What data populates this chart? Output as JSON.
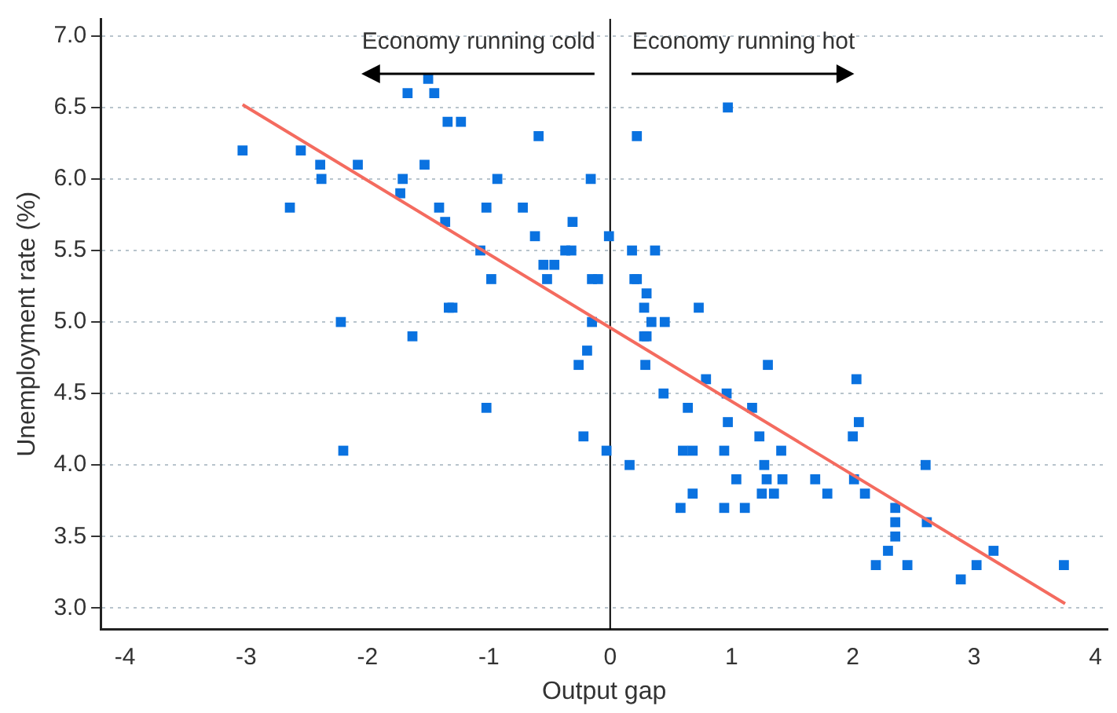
{
  "chart_data": {
    "type": "scatter",
    "xlabel": "Output gap",
    "ylabel": "Unemployment rate (%)",
    "annotations": [
      "Economy running cold",
      "Economy running hot"
    ],
    "xlim": [
      -4.2,
      4.1
    ],
    "xticks": [
      -4,
      -3,
      -2,
      -1,
      0,
      1,
      2,
      3,
      4
    ],
    "ylim": [
      2.85,
      7.12
    ],
    "yticks": [
      {
        "value": 3,
        "label": "3.0"
      },
      {
        "value": 3.5,
        "label": "3.5"
      },
      {
        "value": 4,
        "label": "4.0"
      },
      {
        "value": 4.5,
        "label": "4.5"
      },
      {
        "value": 5,
        "label": "5.0"
      },
      {
        "value": 5.5,
        "label": "5.5"
      },
      {
        "value": 6,
        "label": "6.0"
      },
      {
        "value": 6.5,
        "label": "6.5"
      },
      {
        "value": 7,
        "label": "7.0"
      }
    ],
    "grid": "y",
    "legend": false,
    "ref_lines": [
      {
        "axis": "x",
        "value": 0,
        "color": "#000000"
      }
    ],
    "series": [
      {
        "marker": "square",
        "color": "#0a72e0",
        "x": [
          -3.03,
          -2.55,
          -2.39,
          -2.38,
          -2.08,
          -2.64,
          -1.5,
          -1.67,
          -1.45,
          -1.34,
          -1.23,
          -1.53,
          -1.71,
          -1.73,
          -1.41,
          -1.36,
          -1.02,
          -0.93,
          -0.72,
          -0.59,
          -0.62,
          -0.31,
          -0.16,
          -0.01,
          -1.07,
          -0.37,
          -0.32,
          -0.98,
          -0.55,
          -0.46,
          -0.52,
          -0.15,
          -0.1,
          -1.33,
          -1.3,
          -2.22,
          -1.63,
          -0.15,
          -0.19,
          -0.26,
          -1.02,
          -0.22,
          -2.2,
          -0.03,
          0.22,
          0.97,
          0.18,
          0.37,
          0.2,
          0.22,
          0.3,
          0.28,
          0.73,
          0.34,
          0.45,
          0.28,
          0.3,
          0.29,
          1.3,
          0.79,
          0.44,
          0.96,
          0.64,
          1.17,
          0.97,
          1.23,
          0.6,
          0.68,
          0.94,
          1.41,
          0.16,
          1.27,
          1.04,
          1.29,
          1.42,
          1.69,
          2.01,
          0.68,
          1.25,
          1.35,
          1.79,
          2.1,
          0.58,
          0.94,
          1.11,
          2.35,
          2.35,
          2.61,
          2.35,
          2.29,
          3.16,
          2.19,
          2.45,
          3.02,
          3.74,
          2.89,
          2.6,
          2.03,
          2.05,
          2.0
        ],
        "values": [
          6.2,
          6.2,
          6.1,
          6.0,
          6.1,
          5.8,
          6.7,
          6.6,
          6.6,
          6.4,
          6.4,
          6.1,
          6.0,
          5.9,
          5.8,
          5.7,
          5.8,
          6.0,
          5.8,
          6.3,
          5.6,
          5.7,
          6.0,
          5.6,
          5.5,
          5.5,
          5.5,
          5.3,
          5.4,
          5.4,
          5.3,
          5.3,
          5.3,
          5.1,
          5.1,
          5.0,
          4.9,
          5.0,
          4.8,
          4.7,
          4.4,
          4.2,
          4.1,
          4.1,
          6.3,
          6.5,
          5.5,
          5.5,
          5.3,
          5.3,
          5.2,
          5.1,
          5.1,
          5.0,
          5.0,
          4.9,
          4.9,
          4.7,
          4.7,
          4.6,
          4.5,
          4.5,
          4.4,
          4.4,
          4.3,
          4.2,
          4.1,
          4.1,
          4.1,
          4.1,
          4.0,
          4.0,
          3.9,
          3.9,
          3.9,
          3.9,
          3.9,
          3.8,
          3.8,
          3.8,
          3.8,
          3.8,
          3.7,
          3.7,
          3.7,
          3.7,
          3.6,
          3.6,
          3.5,
          3.4,
          3.4,
          3.3,
          3.3,
          3.3,
          3.3,
          3.2,
          4.0,
          4.6,
          4.3,
          4.2
        ]
      },
      {
        "type": "line",
        "marker": "none",
        "color": "#f46b5f",
        "x": [
          -3.03,
          3.75
        ],
        "values": [
          6.52,
          3.03
        ]
      }
    ]
  }
}
